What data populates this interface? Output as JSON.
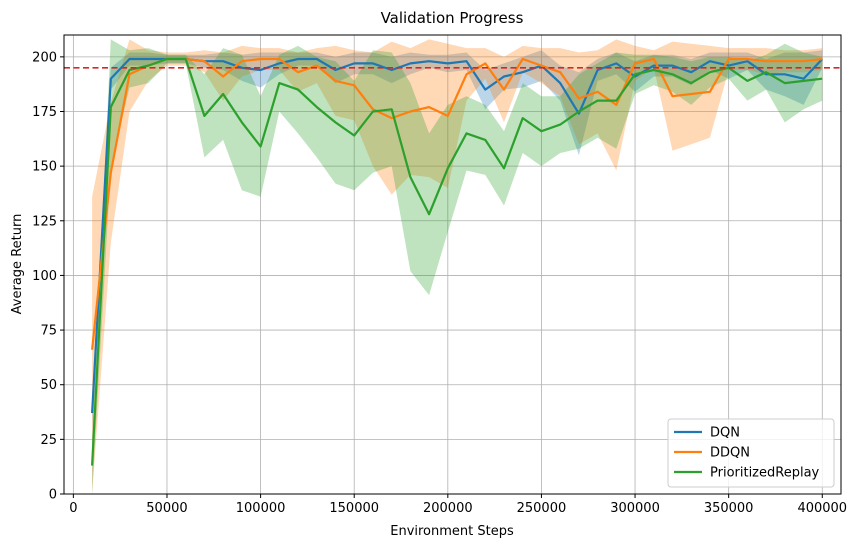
{
  "chart_data": {
    "type": "line",
    "title": "Validation Progress",
    "xlabel": "Environment Steps",
    "ylabel": "Average Return",
    "xlim": [
      -5000,
      410000
    ],
    "ylim": [
      0,
      210
    ],
    "xticks": [
      0,
      50000,
      100000,
      150000,
      200000,
      250000,
      300000,
      350000,
      400000
    ],
    "yticks": [
      0,
      25,
      50,
      75,
      100,
      125,
      150,
      175,
      200
    ],
    "grid": true,
    "legend_position": "lower-right",
    "threshold": {
      "value": 195,
      "color": "#d62728",
      "style": "dashed"
    },
    "x": [
      10000,
      20000,
      30000,
      40000,
      50000,
      60000,
      70000,
      80000,
      90000,
      100000,
      110000,
      120000,
      130000,
      140000,
      150000,
      160000,
      170000,
      180000,
      190000,
      200000,
      210000,
      220000,
      230000,
      240000,
      250000,
      260000,
      270000,
      280000,
      290000,
      300000,
      310000,
      320000,
      330000,
      340000,
      350000,
      360000,
      370000,
      380000,
      390000,
      400000
    ],
    "series": [
      {
        "name": "DQN",
        "color": "#1f77b4",
        "values": [
          37,
          190,
          199,
          199,
          199,
          199,
          198,
          198,
          195,
          194,
          197,
          199,
          199,
          194,
          197,
          197,
          194,
          197,
          198,
          197,
          198,
          185,
          191,
          193,
          196,
          188,
          174,
          194,
          197,
          191,
          196,
          196,
          193,
          198,
          196,
          198,
          192,
          192,
          190,
          199
        ],
        "lower": [
          30,
          185,
          196,
          196,
          197,
          197,
          195,
          194,
          189,
          186,
          192,
          196,
          196,
          188,
          192,
          192,
          188,
          192,
          195,
          193,
          194,
          176,
          185,
          186,
          189,
          180,
          155,
          189,
          192,
          184,
          191,
          191,
          187,
          194,
          190,
          194,
          185,
          182,
          178,
          195
        ],
        "upper": [
          44,
          195,
          202,
          202,
          201,
          201,
          201,
          202,
          201,
          202,
          202,
          202,
          202,
          200,
          202,
          202,
          200,
          202,
          201,
          201,
          202,
          194,
          197,
          200,
          203,
          196,
          193,
          199,
          202,
          198,
          201,
          201,
          199,
          202,
          202,
          202,
          199,
          202,
          202,
          203
        ]
      },
      {
        "name": "DDQN",
        "color": "#ff7f0e",
        "values": [
          66,
          147,
          192,
          196,
          199,
          199,
          198,
          191,
          198,
          199,
          199,
          193,
          196,
          189,
          187,
          176,
          172,
          175,
          177,
          173,
          192,
          197,
          185,
          199,
          196,
          193,
          181,
          184,
          178,
          197,
          199,
          182,
          183,
          184,
          199,
          199,
          198,
          198,
          198,
          199
        ],
        "lower": [
          0,
          115,
          175,
          189,
          196,
          196,
          193,
          180,
          191,
          194,
          194,
          184,
          188,
          173,
          171,
          150,
          137,
          146,
          145,
          140,
          180,
          190,
          170,
          193,
          188,
          182,
          160,
          165,
          148,
          189,
          195,
          157,
          160,
          163,
          194,
          194,
          192,
          193,
          193,
          194
        ],
        "upper": [
          136,
          179,
          208,
          203,
          202,
          202,
          203,
          202,
          205,
          204,
          204,
          202,
          204,
          205,
          203,
          202,
          207,
          204,
          208,
          206,
          204,
          204,
          200,
          205,
          204,
          204,
          202,
          203,
          208,
          205,
          203,
          207,
          206,
          205,
          204,
          204,
          204,
          203,
          203,
          204
        ]
      },
      {
        "name": "PrioritizedReplay",
        "color": "#2ca02c",
        "values": [
          13,
          177,
          194,
          196,
          199,
          199,
          173,
          183,
          170,
          159,
          188,
          185,
          177,
          170,
          164,
          175,
          176,
          145,
          128,
          149,
          165,
          162,
          149,
          172,
          166,
          169,
          175,
          180,
          180,
          192,
          194,
          192,
          188,
          193,
          195,
          189,
          193,
          188,
          189,
          190
        ],
        "lower": [
          0,
          150,
          186,
          188,
          197,
          197,
          154,
          162,
          139,
          136,
          175,
          165,
          154,
          142,
          139,
          147,
          150,
          102,
          91,
          120,
          148,
          146,
          132,
          156,
          150,
          156,
          158,
          163,
          158,
          183,
          187,
          184,
          178,
          186,
          190,
          180,
          185,
          170,
          176,
          180
        ],
        "upper": [
          26,
          208,
          203,
          204,
          201,
          201,
          192,
          204,
          201,
          182,
          201,
          205,
          200,
          198,
          189,
          203,
          202,
          188,
          165,
          178,
          182,
          178,
          166,
          188,
          182,
          182,
          192,
          197,
          202,
          201,
          201,
          200,
          198,
          200,
          200,
          198,
          201,
          206,
          202,
          200
        ]
      }
    ]
  }
}
